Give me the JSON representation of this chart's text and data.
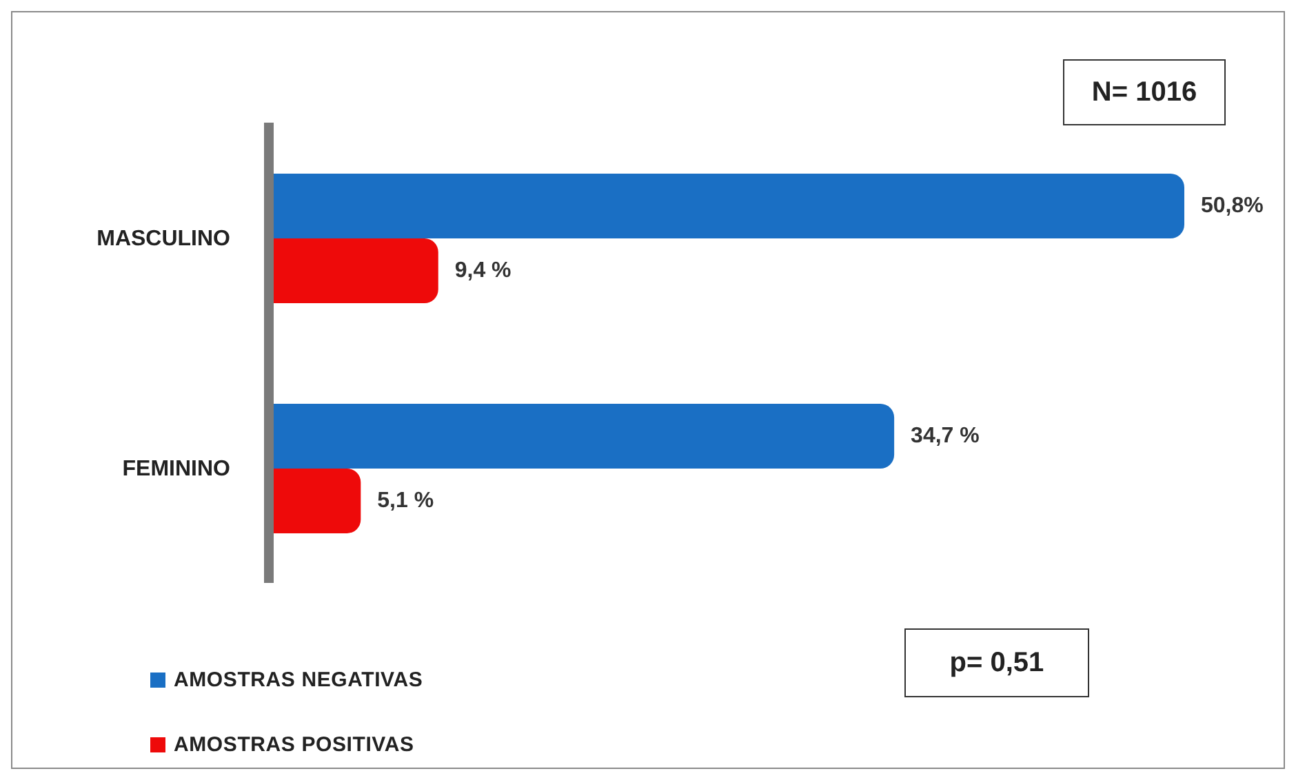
{
  "chart_data": {
    "type": "bar",
    "orientation": "horizontal",
    "categories": [
      "MASCULINO",
      "FEMININO"
    ],
    "series": [
      {
        "name": "AMOSTRAS NEGATIVAS",
        "color": "#1a6fc4",
        "values": [
          50.8,
          34.7
        ],
        "value_labels": [
          "50,8%",
          "34,7 %"
        ]
      },
      {
        "name": "AMOSTRAS POSITIVAS",
        "color": "#ee0a0a",
        "values": [
          9.4,
          5.1
        ],
        "value_labels": [
          "9,4 %",
          "5,1 %"
        ]
      }
    ],
    "annotations": [
      "N= 1016",
      "p= 0,51"
    ],
    "legend": "bottom left",
    "tick_labels": "y"
  }
}
